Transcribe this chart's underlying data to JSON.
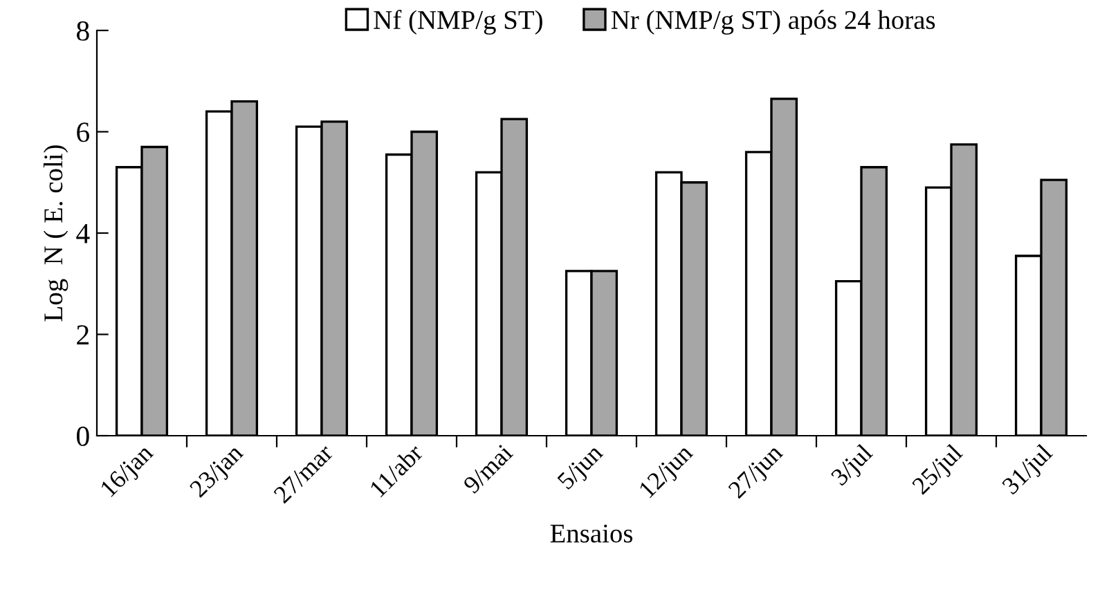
{
  "chart_data": {
    "type": "bar",
    "xlabel": "Ensaios",
    "ylabel": "Log  N ( E. coli)",
    "categories": [
      "16/jan",
      "23/jan",
      "27/mar",
      "11/abr",
      "9/mai",
      "5/jun",
      "12/jun",
      "27/jun",
      "3/jul",
      "25/jul",
      "31/jul"
    ],
    "series": [
      {
        "name": "Nf (NMP/g ST)",
        "color": "#ffffff",
        "values": [
          5.3,
          6.4,
          6.1,
          5.55,
          5.2,
          3.25,
          5.2,
          5.6,
          3.05,
          4.9,
          3.55
        ]
      },
      {
        "name": "Nr (NMP/g ST) após 24 horas",
        "color": "#a6a6a6",
        "values": [
          5.7,
          6.6,
          6.2,
          6.0,
          6.25,
          3.25,
          5.0,
          6.65,
          5.3,
          5.75,
          5.05
        ]
      }
    ],
    "ylim": [
      0,
      8
    ],
    "yticks": [
      0,
      2,
      4,
      6,
      8
    ],
    "grid": false,
    "legend": "top"
  }
}
